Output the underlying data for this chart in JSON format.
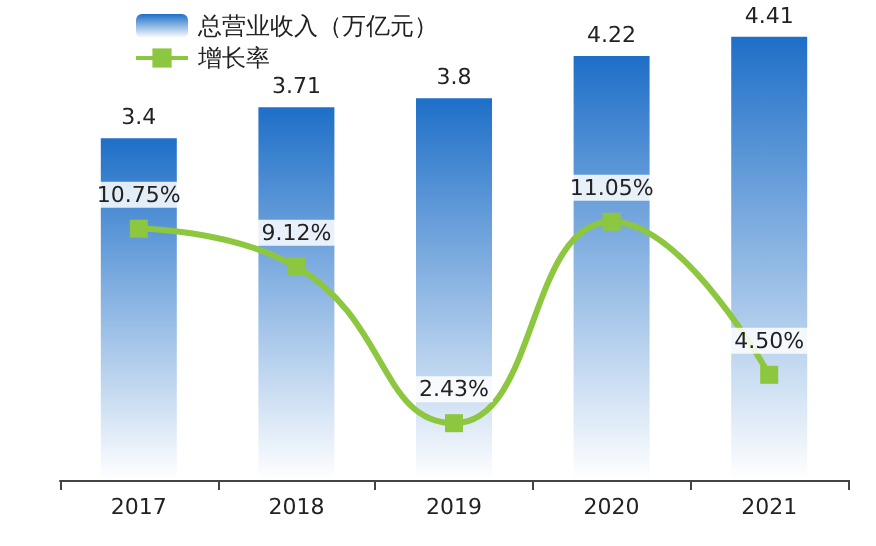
{
  "chart_data": {
    "type": "bar",
    "categories": [
      "2017",
      "2018",
      "2019",
      "2020",
      "2021"
    ],
    "series": [
      {
        "name": "总营业收入（万亿元）",
        "color": "#1e6fc8",
        "values": [
          3.4,
          3.71,
          3.8,
          4.22,
          4.41
        ],
        "value_labels": [
          "3.4",
          "3.71",
          "3.8",
          "4.22",
          "4.41"
        ]
      },
      {
        "name": "增长率",
        "type": "line",
        "axis": "y2",
        "color": "#8dc63f",
        "values": [
          10.75,
          9.12,
          2.43,
          11.05,
          4.5
        ],
        "value_labels": [
          "10.75%",
          "9.12%",
          "2.43%",
          "11.05%",
          "4.50%"
        ]
      }
    ],
    "grid": false,
    "legend": "top left",
    "marker": "square",
    "line_style": "solid"
  }
}
